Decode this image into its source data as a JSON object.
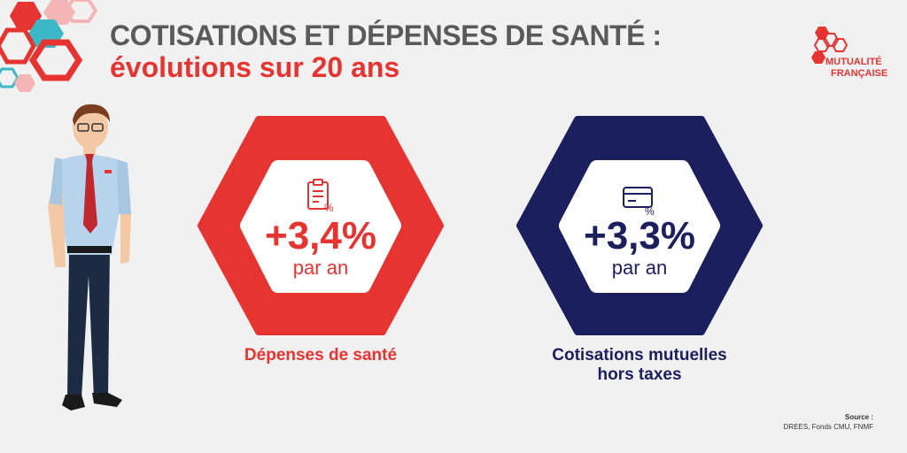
{
  "title": {
    "line1": "COTISATIONS ET DÉPENSES DE SANTÉ :",
    "line2": "évolutions sur 20 ans"
  },
  "logo": {
    "line1": "MUTUALITÉ",
    "line2": "FRANÇAISE",
    "icon": "hexagon-cluster-logo"
  },
  "stats": [
    {
      "value": "+3,4%",
      "unit": "par an",
      "label": "Dépenses de santé",
      "icon": "clipboard-percent-icon",
      "color": "#e63431"
    },
    {
      "value": "+3,3%",
      "unit": "par an",
      "label_line1": "Cotisations mutuelles",
      "label_line2": "hors taxes",
      "icon": "card-percent-icon",
      "color": "#1b1f5e"
    }
  ],
  "source": {
    "label": "Source :",
    "text": "DREES, Fonds CMU, FNMF"
  },
  "colors": {
    "red": "#e63431",
    "navy": "#1b1f5e",
    "gray_title": "#5a5a5a",
    "teal_decor": "#3bb7c6"
  }
}
